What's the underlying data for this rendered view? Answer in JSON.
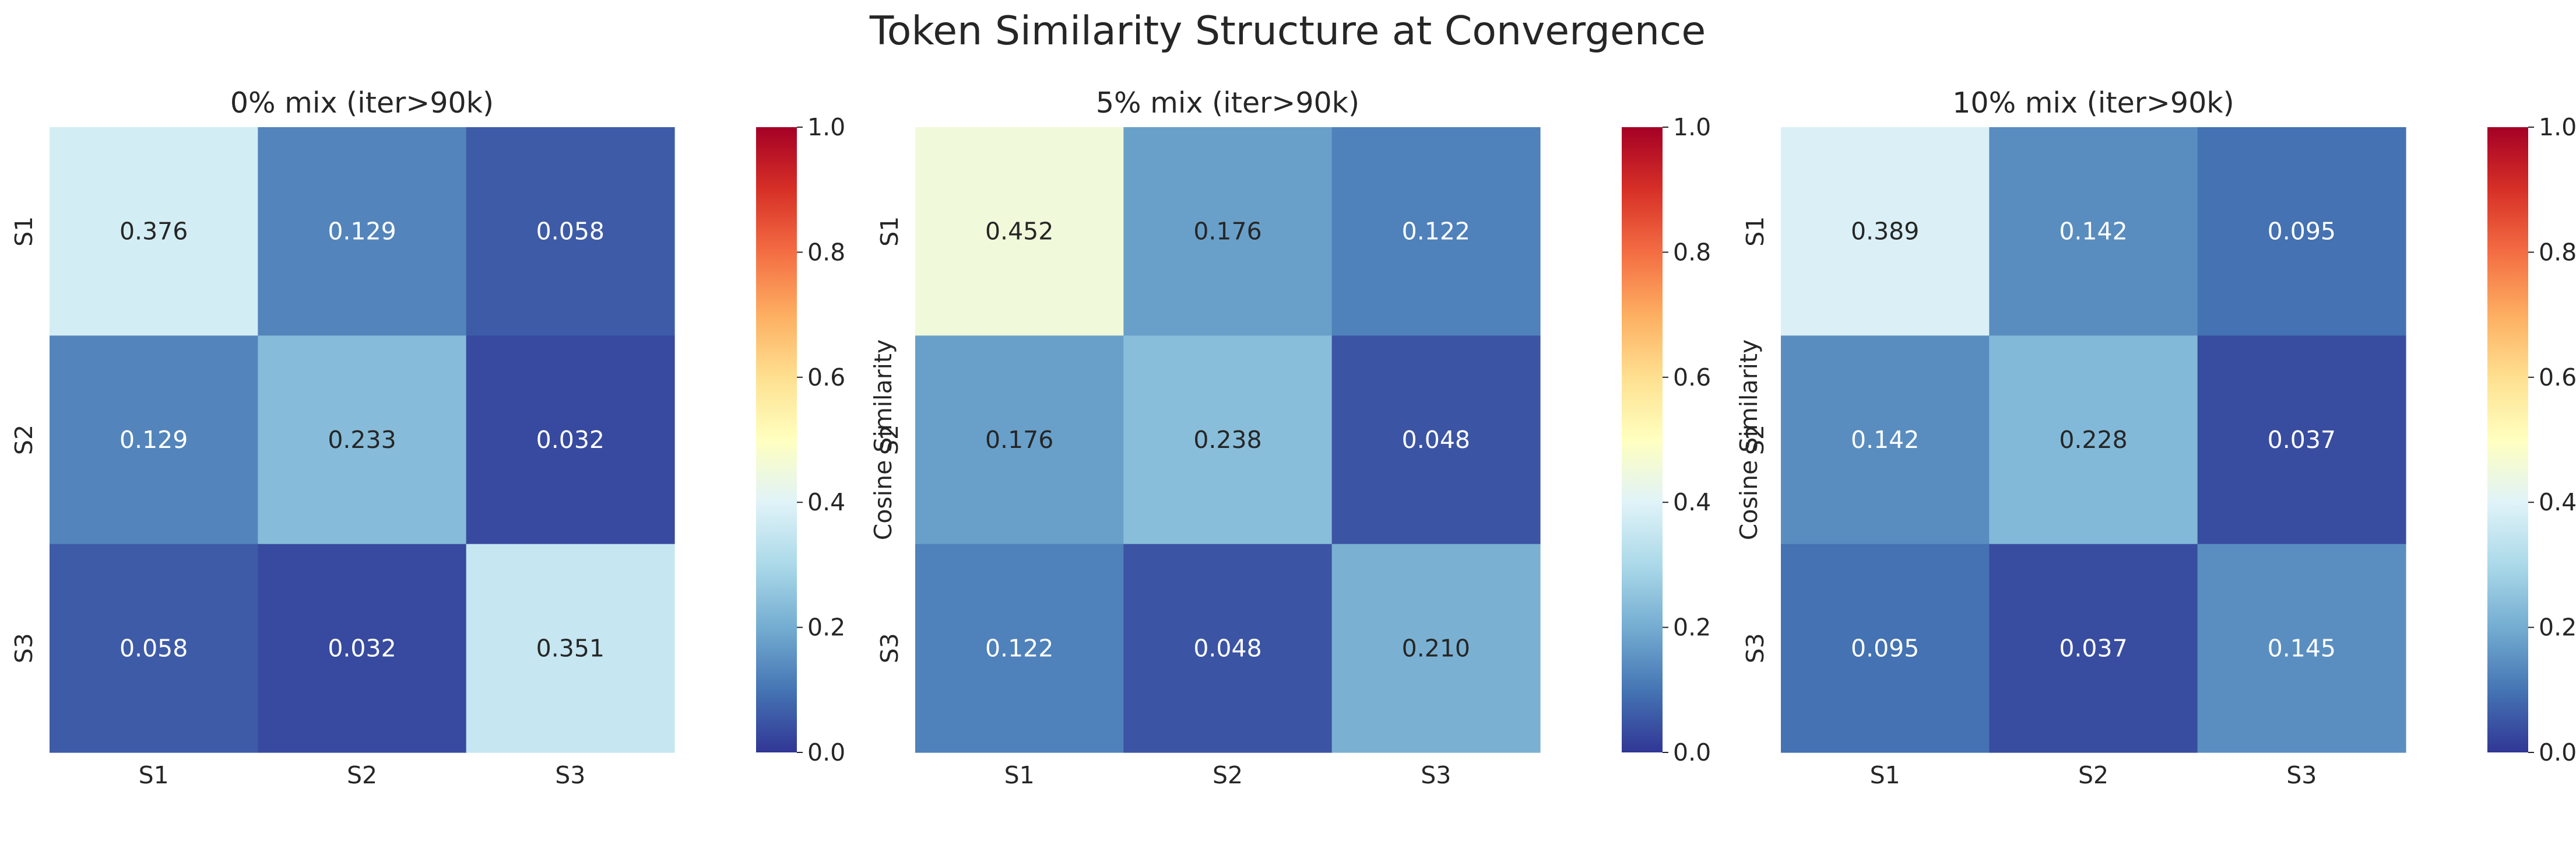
{
  "figure_title": "Token Similarity Structure at Convergence",
  "colormap": {
    "name": "RdYlBu_r",
    "stops": [
      "#313695",
      "#4575b4",
      "#74add1",
      "#abd9e9",
      "#e0f3f8",
      "#ffffbf",
      "#fee090",
      "#fdae61",
      "#f46d43",
      "#d73027",
      "#a50026"
    ]
  },
  "colorbar": {
    "label": "Cosine Similarity",
    "ticks": [
      "0.0",
      "0.2",
      "0.4",
      "0.6",
      "0.8",
      "1.0"
    ],
    "range": [
      0,
      1
    ]
  },
  "chart_data": [
    {
      "type": "heatmap",
      "title": "0% mix (iter>90k)",
      "x_labels": [
        "S1",
        "S2",
        "S3"
      ],
      "y_labels": [
        "S1",
        "S2",
        "S3"
      ],
      "values": [
        [
          0.376,
          0.129,
          0.058
        ],
        [
          0.129,
          0.233,
          0.032
        ],
        [
          0.058,
          0.032,
          0.351
        ]
      ],
      "value_labels": [
        [
          "0.376",
          "0.129",
          "0.058"
        ],
        [
          "0.129",
          "0.233",
          "0.032"
        ],
        [
          "0.058",
          "0.032",
          "0.351"
        ]
      ],
      "vmin": 0,
      "vmax": 1
    },
    {
      "type": "heatmap",
      "title": "5% mix (iter>90k)",
      "x_labels": [
        "S1",
        "S2",
        "S3"
      ],
      "y_labels": [
        "S1",
        "S2",
        "S3"
      ],
      "values": [
        [
          0.452,
          0.176,
          0.122
        ],
        [
          0.176,
          0.238,
          0.048
        ],
        [
          0.122,
          0.048,
          0.21
        ]
      ],
      "value_labels": [
        [
          "0.452",
          "0.176",
          "0.122"
        ],
        [
          "0.176",
          "0.238",
          "0.048"
        ],
        [
          "0.122",
          "0.048",
          "0.210"
        ]
      ],
      "vmin": 0,
      "vmax": 1
    },
    {
      "type": "heatmap",
      "title": "10% mix (iter>90k)",
      "x_labels": [
        "S1",
        "S2",
        "S3"
      ],
      "y_labels": [
        "S1",
        "S2",
        "S3"
      ],
      "values": [
        [
          0.389,
          0.142,
          0.095
        ],
        [
          0.142,
          0.228,
          0.037
        ],
        [
          0.095,
          0.037,
          0.145
        ]
      ],
      "value_labels": [
        [
          "0.389",
          "0.142",
          "0.095"
        ],
        [
          "0.142",
          "0.228",
          "0.037"
        ],
        [
          "0.095",
          "0.037",
          "0.145"
        ]
      ],
      "vmin": 0,
      "vmax": 1
    }
  ]
}
